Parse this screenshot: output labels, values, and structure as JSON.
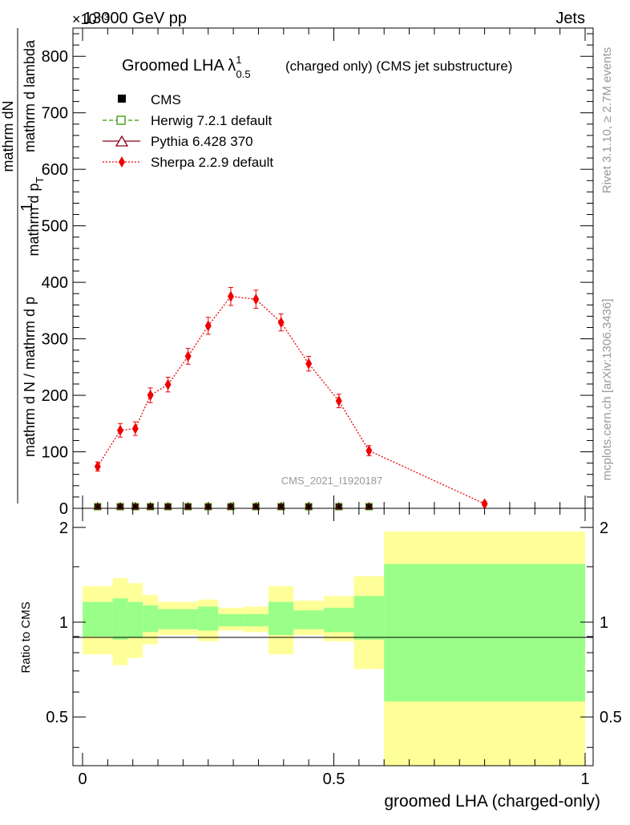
{
  "header": {
    "energy_label": "13000 GeV pp",
    "channel_label": "Jets",
    "exponent_label": "×10⁻³"
  },
  "side_labels": {
    "rivet": "Rivet 3.1.10, ≥ 2.7M events",
    "mcplots": "mcplots.cern.ch [arXiv:1306.3436]"
  },
  "colors": {
    "cms": "#000000",
    "herwig": "#339900",
    "pythia": "#880011",
    "sherpa": "#ee0000",
    "band_inner": "#99ff88",
    "band_outer": "#ffff99"
  },
  "chart_data": [
    {
      "type": "line",
      "title": "Groomed LHA λ",
      "title_sup": "1",
      "title_sub": "0.5",
      "title_suffix": "(charged only) (CMS jet substructure)",
      "ylabel_numerator": "1",
      "ylabel_numerator_text": "mathrm dN",
      "ylabel_denominator": "mathrm d N / mathrm d p",
      "ylabel_denominator2": "mathrm d p",
      "ylabel_den_sub": "T",
      "ylabel_tail": "mathrm d lambda",
      "xlabel": "groomed LHA (charged-only)",
      "watermark": "CMS_2021_I1920187",
      "xlim": [
        0,
        1
      ],
      "ylim": [
        0,
        850
      ],
      "y_scale_note": "×10^-3",
      "y_ticks": [
        0,
        100,
        200,
        300,
        400,
        500,
        600,
        700,
        800
      ],
      "y_tick_labels": [
        "0",
        "100",
        "200",
        "300",
        "400",
        "500",
        "600",
        "700",
        "800"
      ],
      "legend": [
        {
          "name": "CMS",
          "marker": "square-filled"
        },
        {
          "name": "Herwig 7.2.1 default",
          "marker": "square-open"
        },
        {
          "name": "Pythia 6.428 370",
          "marker": "triangle-open"
        },
        {
          "name": "Sherpa 2.2.9 default",
          "marker": "diamond-filled"
        }
      ],
      "series": [
        {
          "name": "Sherpa 2.2.9 default",
          "x": [
            0.03,
            0.075,
            0.105,
            0.135,
            0.17,
            0.21,
            0.25,
            0.295,
            0.345,
            0.395,
            0.45,
            0.51,
            0.57,
            0.8
          ],
          "y": [
            74,
            138,
            141,
            200,
            219,
            269,
            323,
            375,
            370,
            329,
            256,
            190,
            102,
            8
          ],
          "yerr": [
            8,
            12,
            12,
            13,
            13,
            14,
            15,
            16,
            16,
            15,
            13,
            12,
            9,
            4
          ]
        },
        {
          "name": "CMS",
          "x": [
            0.03,
            0.075,
            0.105,
            0.135,
            0.17,
            0.21,
            0.25,
            0.295,
            0.345,
            0.395,
            0.45,
            0.51,
            0.57
          ],
          "y": [
            0,
            0,
            0,
            0,
            0,
            0,
            0,
            0,
            0,
            0,
            0,
            0,
            0
          ]
        }
      ]
    },
    {
      "type": "area",
      "ylabel": "Ratio to CMS",
      "xlabel": "groomed LHA (charged-only)",
      "xlim": [
        0,
        1
      ],
      "ylim": [
        0.35,
        2.3
      ],
      "y_scale": "log",
      "y_ticks": [
        0.5,
        1,
        2
      ],
      "y_tick_labels": [
        "0.5",
        "1",
        "2"
      ],
      "x_ticks": [
        0,
        0.5,
        1
      ],
      "x_tick_labels": [
        "0",
        "0.5",
        "1"
      ],
      "bins": [
        {
          "lo": 0.0,
          "hi": 0.06,
          "inner": [
            0.9,
            1.16
          ],
          "outer": [
            0.79,
            1.3
          ]
        },
        {
          "lo": 0.06,
          "hi": 0.09,
          "inner": [
            0.88,
            1.19
          ],
          "outer": [
            0.73,
            1.38
          ]
        },
        {
          "lo": 0.09,
          "hi": 0.12,
          "inner": [
            0.89,
            1.16
          ],
          "outer": [
            0.77,
            1.33
          ]
        },
        {
          "lo": 0.12,
          "hi": 0.15,
          "inner": [
            0.93,
            1.13
          ],
          "outer": [
            0.85,
            1.22
          ]
        },
        {
          "lo": 0.15,
          "hi": 0.19,
          "inner": [
            0.95,
            1.1
          ],
          "outer": [
            0.91,
            1.16
          ]
        },
        {
          "lo": 0.19,
          "hi": 0.23,
          "inner": [
            0.95,
            1.1
          ],
          "outer": [
            0.91,
            1.16
          ]
        },
        {
          "lo": 0.23,
          "hi": 0.27,
          "inner": [
            0.94,
            1.12
          ],
          "outer": [
            0.87,
            1.18
          ]
        },
        {
          "lo": 0.27,
          "hi": 0.32,
          "inner": [
            0.97,
            1.06
          ],
          "outer": [
            0.94,
            1.11
          ]
        },
        {
          "lo": 0.32,
          "hi": 0.37,
          "inner": [
            0.97,
            1.06
          ],
          "outer": [
            0.93,
            1.12
          ]
        },
        {
          "lo": 0.37,
          "hi": 0.42,
          "inner": [
            0.91,
            1.16
          ],
          "outer": [
            0.79,
            1.3
          ]
        },
        {
          "lo": 0.42,
          "hi": 0.48,
          "inner": [
            0.95,
            1.09
          ],
          "outer": [
            0.91,
            1.17
          ]
        },
        {
          "lo": 0.48,
          "hi": 0.54,
          "inner": [
            0.93,
            1.11
          ],
          "outer": [
            0.87,
            1.21
          ]
        },
        {
          "lo": 0.54,
          "hi": 0.6,
          "inner": [
            0.88,
            1.21
          ],
          "outer": [
            0.71,
            1.4
          ]
        },
        {
          "lo": 0.6,
          "hi": 1.0,
          "inner": [
            0.56,
            1.53
          ],
          "outer": [
            0.35,
            1.94
          ]
        }
      ]
    }
  ]
}
